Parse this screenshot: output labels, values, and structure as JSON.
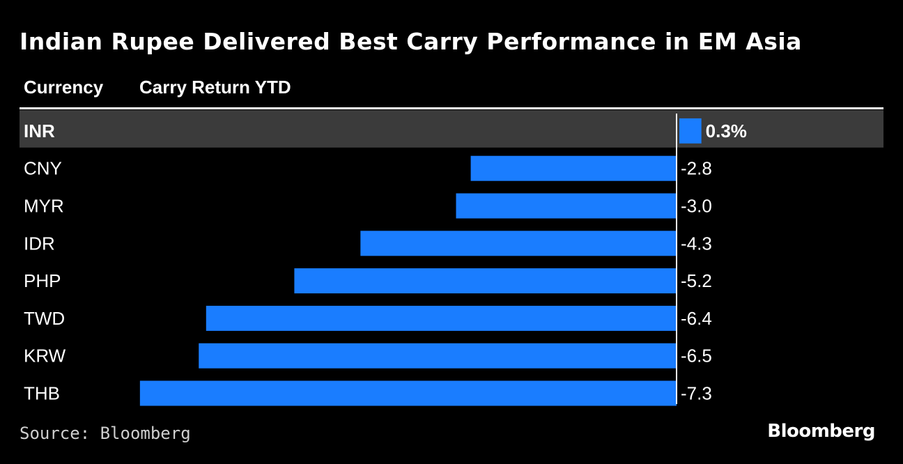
{
  "title": "Indian Rupee Delivered Best Carry Performance in EM Asia",
  "columns": {
    "currency": "Currency",
    "return": "Carry Return YTD"
  },
  "source": "Source: Bloomberg",
  "brand": "Bloomberg",
  "colors": {
    "bar": "#1a7dff",
    "highlight_row": "#3b3b3b",
    "axis": "#ffffff"
  },
  "chart_data": {
    "type": "bar",
    "orientation": "horizontal",
    "categories": [
      "INR",
      "CNY",
      "MYR",
      "IDR",
      "PHP",
      "TWD",
      "KRW",
      "THB"
    ],
    "values": [
      0.3,
      -2.8,
      -3.0,
      -4.3,
      -5.2,
      -6.4,
      -6.5,
      -7.3
    ],
    "value_labels": [
      "0.3%",
      "-2.8",
      "-3.0",
      "-4.3",
      "-5.2",
      "-6.4",
      "-6.5",
      "-7.3"
    ],
    "highlighted": "INR",
    "xlim": [
      -7.3,
      0.3
    ]
  }
}
